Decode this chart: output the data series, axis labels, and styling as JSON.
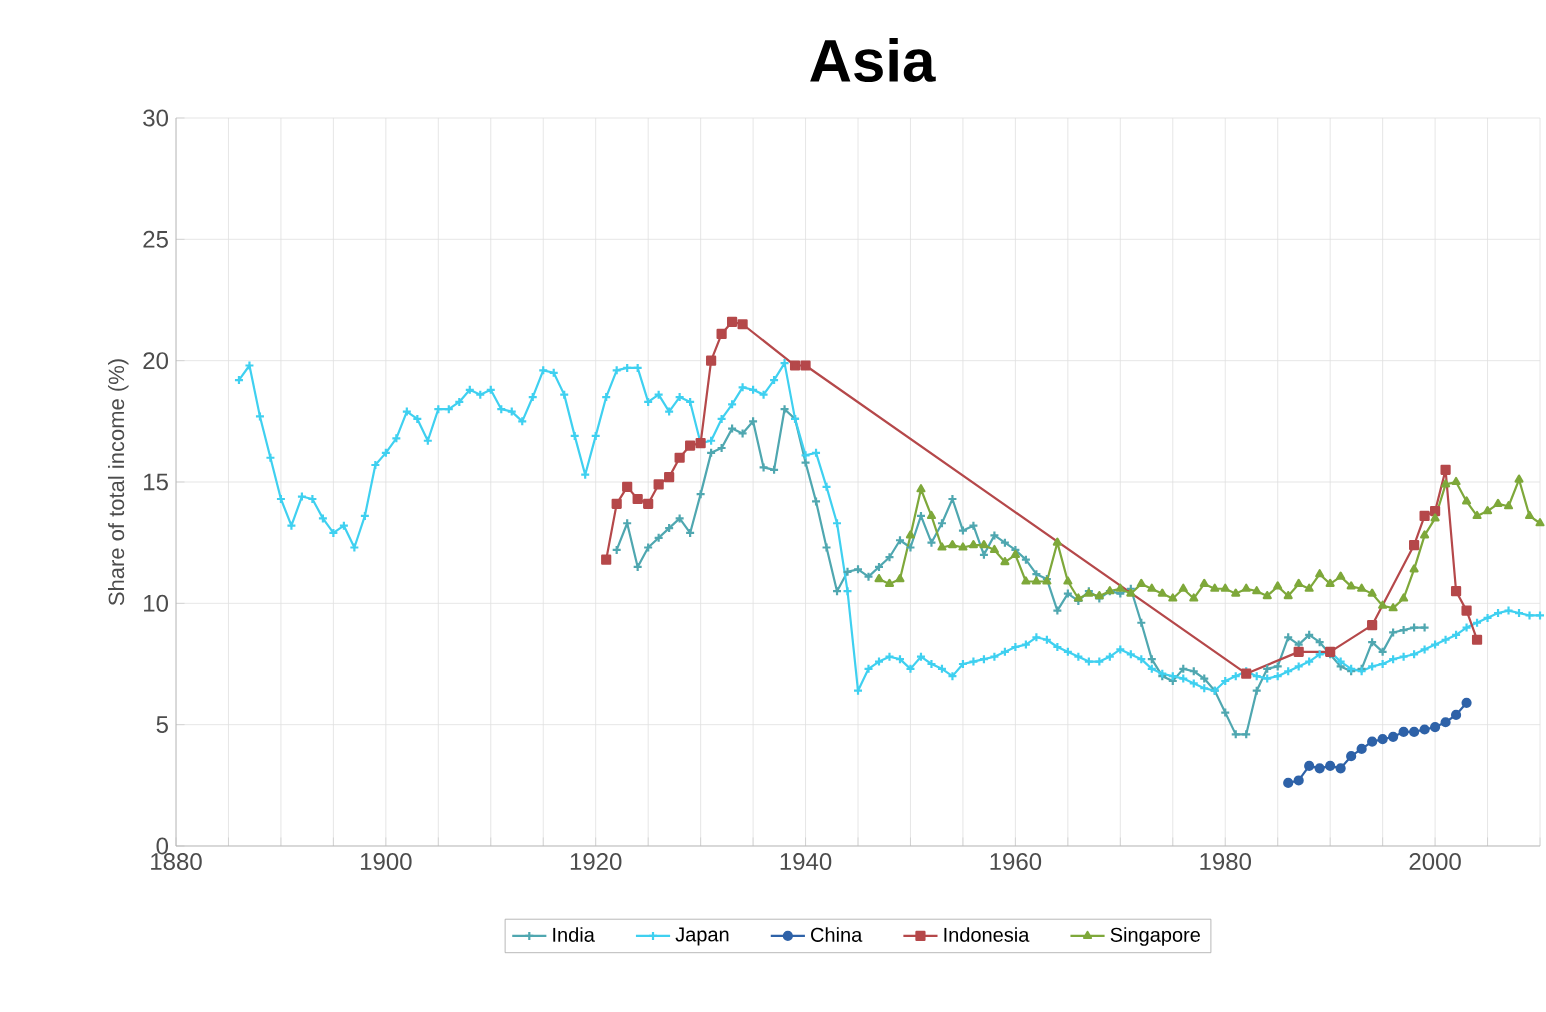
{
  "chart_data": {
    "type": "line",
    "title": "Asia",
    "ylabel": "Share of total income (%)",
    "xlim": [
      1880,
      2010
    ],
    "ylim": [
      0,
      30
    ],
    "yticks": [
      0,
      5,
      10,
      15,
      20,
      25,
      30
    ],
    "xticks": [
      1880,
      {
        "value": 1885,
        "label": null
      },
      {
        "value": 1890,
        "label": null
      },
      {
        "value": 1895,
        "label": null
      },
      1900,
      {
        "value": 1905,
        "label": null
      },
      {
        "value": 1910,
        "label": null
      },
      {
        "value": 1915,
        "label": null
      },
      1920,
      {
        "value": 1925,
        "label": null
      },
      {
        "value": 1930,
        "label": null
      },
      {
        "value": 1935,
        "label": null
      },
      1940,
      {
        "value": 1945,
        "label": null
      },
      {
        "value": 1950,
        "label": null
      },
      {
        "value": 1955,
        "label": null
      },
      1960,
      {
        "value": 1965,
        "label": null
      },
      {
        "value": 1970,
        "label": null
      },
      {
        "value": 1975,
        "label": null
      },
      1980,
      {
        "value": 1985,
        "label": null
      },
      {
        "value": 1990,
        "label": null
      },
      {
        "value": 1995,
        "label": null
      },
      2000,
      {
        "value": 2005,
        "label": null
      },
      {
        "value": 2010,
        "label": null
      }
    ],
    "grid": true,
    "legend": "bottom",
    "line_style": "solid",
    "series": [
      {
        "name": "India",
        "color": "#4fa7b0",
        "marker": "cross",
        "x": [
          1922,
          1923,
          1924,
          1925,
          1926,
          1927,
          1928,
          1929,
          1930,
          1931,
          1932,
          1933,
          1934,
          1935,
          1936,
          1937,
          1938,
          1939,
          1940,
          1941,
          1942,
          1943,
          1944,
          1945,
          1946,
          1947,
          1948,
          1949,
          1950,
          1951,
          1952,
          1953,
          1954,
          1955,
          1956,
          1957,
          1958,
          1959,
          1960,
          1961,
          1962,
          1963,
          1964,
          1965,
          1966,
          1967,
          1968,
          1969,
          1970,
          1971,
          1972,
          1973,
          1974,
          1975,
          1976,
          1977,
          1978,
          1979,
          1980,
          1981,
          1982,
          1983,
          1984,
          1985,
          1986,
          1987,
          1988,
          1989,
          1990,
          1991,
          1992,
          1993,
          1994,
          1995,
          1996,
          1997,
          1998,
          1999
        ],
        "values": [
          12.2,
          13.3,
          11.5,
          12.3,
          12.7,
          13.1,
          13.5,
          12.9,
          14.5,
          16.2,
          16.4,
          17.2,
          17.0,
          17.5,
          15.6,
          15.5,
          18.0,
          17.6,
          15.8,
          14.2,
          12.3,
          10.5,
          11.3,
          11.4,
          11.1,
          11.5,
          11.9,
          12.6,
          12.3,
          13.6,
          12.5,
          13.3,
          14.3,
          13.0,
          13.2,
          12.0,
          12.8,
          12.5,
          12.2,
          11.8,
          11.2,
          11.0,
          9.7,
          10.4,
          10.1,
          10.5,
          10.2,
          10.5,
          10.4,
          10.6,
          9.2,
          7.7,
          7.0,
          6.8,
          7.3,
          7.2,
          6.9,
          6.4,
          5.5,
          4.6,
          4.6,
          6.4,
          7.3,
          7.4,
          8.6,
          8.3,
          8.7,
          8.4,
          7.9,
          7.4,
          7.2,
          7.3,
          8.4,
          8.0,
          8.8,
          8.9,
          9.0,
          9.0
        ]
      },
      {
        "name": "Japan",
        "color": "#3fd0f0",
        "marker": "cross",
        "x": [
          1886,
          1887,
          1888,
          1889,
          1890,
          1891,
          1892,
          1893,
          1894,
          1895,
          1896,
          1897,
          1898,
          1899,
          1900,
          1901,
          1902,
          1903,
          1904,
          1905,
          1906,
          1907,
          1908,
          1909,
          1910,
          1911,
          1912,
          1913,
          1914,
          1915,
          1916,
          1917,
          1918,
          1919,
          1920,
          1921,
          1922,
          1923,
          1924,
          1925,
          1926,
          1927,
          1928,
          1929,
          1930,
          1931,
          1932,
          1933,
          1934,
          1935,
          1936,
          1937,
          1938,
          1939,
          1940,
          1941,
          1942,
          1943,
          1944,
          1945,
          1946,
          1947,
          1948,
          1949,
          1950,
          1951,
          1952,
          1953,
          1954,
          1955,
          1956,
          1957,
          1958,
          1959,
          1960,
          1961,
          1962,
          1963,
          1964,
          1965,
          1966,
          1967,
          1968,
          1969,
          1970,
          1971,
          1972,
          1973,
          1974,
          1975,
          1976,
          1977,
          1978,
          1979,
          1980,
          1981,
          1982,
          1983,
          1984,
          1985,
          1986,
          1987,
          1988,
          1989,
          1990,
          1991,
          1992,
          1993,
          1994,
          1995,
          1996,
          1997,
          1998,
          1999,
          2000,
          2001,
          2002,
          2003,
          2004,
          2005,
          2006,
          2007,
          2008,
          2009,
          2010
        ],
        "values": [
          19.2,
          19.8,
          17.7,
          16.0,
          14.3,
          13.2,
          14.4,
          14.3,
          13.5,
          12.9,
          13.2,
          12.3,
          13.6,
          15.7,
          16.2,
          16.8,
          17.9,
          17.6,
          16.7,
          18.0,
          18.0,
          18.3,
          18.8,
          18.6,
          18.8,
          18.0,
          17.9,
          17.5,
          18.5,
          19.6,
          19.5,
          18.6,
          16.9,
          15.3,
          16.9,
          18.5,
          19.6,
          19.7,
          19.7,
          18.3,
          18.6,
          17.9,
          18.5,
          18.3,
          16.6,
          16.7,
          17.6,
          18.2,
          18.9,
          18.8,
          18.6,
          19.2,
          19.9,
          17.6,
          16.1,
          16.2,
          14.8,
          13.3,
          10.5,
          6.4,
          7.3,
          7.6,
          7.8,
          7.7,
          7.3,
          7.8,
          7.5,
          7.3,
          7.0,
          7.5,
          7.6,
          7.7,
          7.8,
          8.0,
          8.2,
          8.3,
          8.6,
          8.5,
          8.2,
          8.0,
          7.8,
          7.6,
          7.6,
          7.8,
          8.1,
          7.9,
          7.7,
          7.3,
          7.1,
          7.0,
          6.9,
          6.7,
          6.5,
          6.4,
          6.8,
          7.0,
          7.2,
          7.0,
          6.9,
          7.0,
          7.2,
          7.4,
          7.6,
          7.9,
          8.0,
          7.6,
          7.3,
          7.2,
          7.4,
          7.5,
          7.7,
          7.8,
          7.9,
          8.1,
          8.3,
          8.5,
          8.7,
          9.0,
          9.2,
          9.4,
          9.6,
          9.7,
          9.6,
          9.5,
          9.5
        ]
      },
      {
        "name": "China",
        "color": "#2e62a8",
        "marker": "circle",
        "x": [
          1986,
          1987,
          1988,
          1989,
          1990,
          1991,
          1992,
          1993,
          1994,
          1995,
          1996,
          1997,
          1998,
          1999,
          2000,
          2001,
          2002,
          2003
        ],
        "values": [
          2.6,
          2.7,
          3.3,
          3.2,
          3.3,
          3.2,
          3.7,
          4.0,
          4.3,
          4.4,
          4.5,
          4.7,
          4.7,
          4.8,
          4.9,
          5.1,
          5.4,
          5.9
        ]
      },
      {
        "name": "Indonesia",
        "color": "#b5484a",
        "marker": "square",
        "x": [
          1921,
          1922,
          1923,
          1924,
          1925,
          1926,
          1927,
          1928,
          1929,
          1930,
          1931,
          1932,
          1933,
          1934,
          1939,
          1940,
          1982,
          1987,
          1990,
          1994,
          1998,
          1999,
          2000,
          2001,
          2002,
          2003,
          2004
        ],
        "values": [
          11.8,
          14.1,
          14.8,
          14.3,
          14.1,
          14.9,
          15.2,
          16.0,
          16.5,
          16.6,
          20.0,
          21.1,
          21.6,
          21.5,
          19.8,
          19.8,
          7.1,
          8.0,
          8.0,
          9.1,
          12.4,
          13.6,
          13.8,
          15.5,
          10.5,
          9.7,
          8.5
        ]
      },
      {
        "name": "Singapore",
        "color": "#7ea83a",
        "marker": "triangle",
        "x": [
          1947,
          1948,
          1949,
          1950,
          1951,
          1952,
          1953,
          1954,
          1955,
          1956,
          1957,
          1958,
          1959,
          1960,
          1961,
          1962,
          1963,
          1964,
          1965,
          1966,
          1967,
          1968,
          1969,
          1970,
          1971,
          1972,
          1973,
          1974,
          1975,
          1976,
          1977,
          1978,
          1979,
          1980,
          1981,
          1982,
          1983,
          1984,
          1985,
          1986,
          1987,
          1988,
          1989,
          1990,
          1991,
          1992,
          1993,
          1994,
          1995,
          1996,
          1997,
          1998,
          1999,
          2000,
          2001,
          2002,
          2003,
          2004,
          2005,
          2006,
          2007,
          2008,
          2009,
          2010
        ],
        "values": [
          11.0,
          10.8,
          11.0,
          12.8,
          14.7,
          13.6,
          12.3,
          12.4,
          12.3,
          12.4,
          12.4,
          12.2,
          11.7,
          12.0,
          10.9,
          10.9,
          10.9,
          12.5,
          10.9,
          10.2,
          10.4,
          10.3,
          10.5,
          10.6,
          10.4,
          10.8,
          10.6,
          10.4,
          10.2,
          10.6,
          10.2,
          10.8,
          10.6,
          10.6,
          10.4,
          10.6,
          10.5,
          10.3,
          10.7,
          10.3,
          10.8,
          10.6,
          11.2,
          10.8,
          11.1,
          10.7,
          10.6,
          10.4,
          9.9,
          9.8,
          10.2,
          11.4,
          12.8,
          13.5,
          14.9,
          15.0,
          14.2,
          13.6,
          13.8,
          14.1,
          14.0,
          15.1,
          13.6,
          13.3
        ]
      }
    ]
  }
}
